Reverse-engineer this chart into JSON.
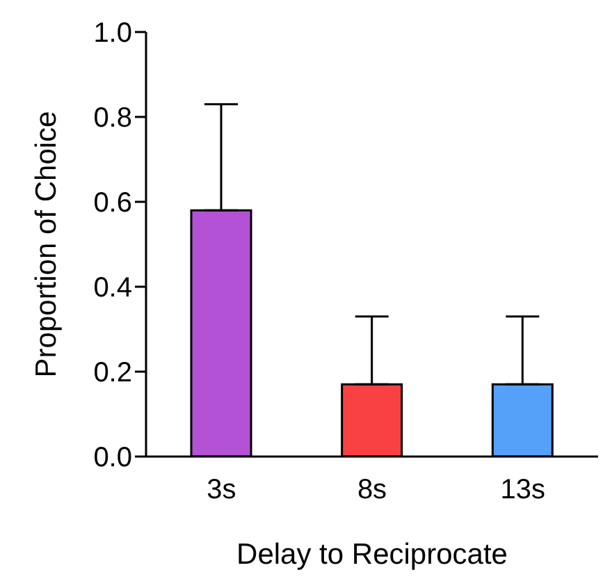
{
  "chart_data": {
    "type": "bar",
    "xlabel": "Delay to Reciprocate",
    "ylabel": "Proportion of Choice",
    "categories": [
      "3s",
      "8s",
      "13s"
    ],
    "values": [
      0.58,
      0.17,
      0.17
    ],
    "colors": [
      "#b452d6",
      "#f94144",
      "#55a0f8"
    ],
    "errors": [
      [
        0.58,
        0.83
      ],
      [
        0.17,
        0.33
      ],
      [
        0.17,
        0.33
      ]
    ],
    "ylim": [
      0,
      1
    ],
    "yticks": [
      {
        "value": 0,
        "label": "0.0"
      },
      {
        "value": 0.2,
        "label": "0.2"
      },
      {
        "value": 0.4,
        "label": "0.4"
      },
      {
        "value": 0.6,
        "label": "0.6"
      },
      {
        "value": 0.8,
        "label": "0.8"
      },
      {
        "value": 1,
        "label": "1.0"
      }
    ],
    "grid": false,
    "legend": false
  }
}
